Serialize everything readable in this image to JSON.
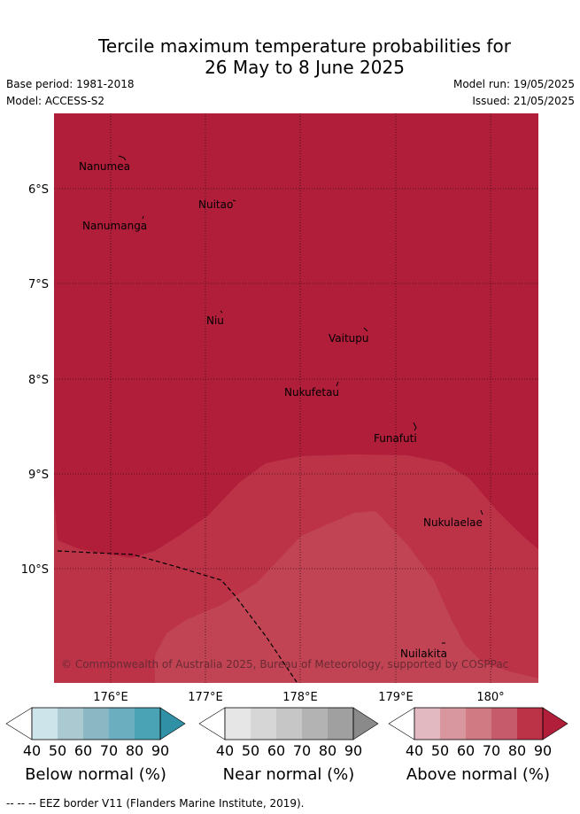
{
  "title_line1": "Tercile maximum temperature probabilities for",
  "title_line2": "26 May to 8 June 2025",
  "base_period": "Base period: 1981-2018",
  "model": "Model: ACCESS-S2",
  "model_run": "Model run: 19/05/2025",
  "issued": "Issued: 21/05/2025",
  "lat_ticks": [
    "6°S",
    "7°S",
    "8°S",
    "9°S",
    "10°S"
  ],
  "lon_ticks": [
    "176°E",
    "177°E",
    "178°E",
    "179°E",
    "180°"
  ],
  "places": [
    "Nanumea",
    "Nuitao",
    "Nanumanga",
    "Niu",
    "Vaitupu",
    "Nukufetau",
    "Funafuti",
    "Nukulaelae",
    "Nuilakita"
  ],
  "copyright": "© Commonwealth of Australia 2025, Bureau of Meteorology, supported by COSPPac",
  "colorbars": [
    {
      "label": "Below normal (%)",
      "ticks": [
        "40",
        "50",
        "60",
        "70",
        "80",
        "90"
      ],
      "colors": [
        "#ffffff",
        "#cde4ea",
        "#aac9d0",
        "#8bb7c4",
        "#6aaebf",
        "#4aa3b5",
        "#2f90a6"
      ]
    },
    {
      "label": "Near normal (%)",
      "ticks": [
        "40",
        "50",
        "60",
        "70",
        "80",
        "90"
      ],
      "colors": [
        "#ffffff",
        "#e6e6e6",
        "#d6d6d6",
        "#c6c6c6",
        "#b3b3b3",
        "#a0a0a0",
        "#8a8a8a"
      ]
    },
    {
      "label": "Above normal (%)",
      "ticks": [
        "40",
        "50",
        "60",
        "70",
        "80",
        "90"
      ],
      "colors": [
        "#ffffff",
        "#e2b9c0",
        "#d8969e",
        "#d07b83",
        "#c65c6b",
        "#bc3348",
        "#b01e3a"
      ]
    }
  ],
  "footer": "--  --  -- EEZ border V11 (Flanders Marine Institute, 2019)."
}
